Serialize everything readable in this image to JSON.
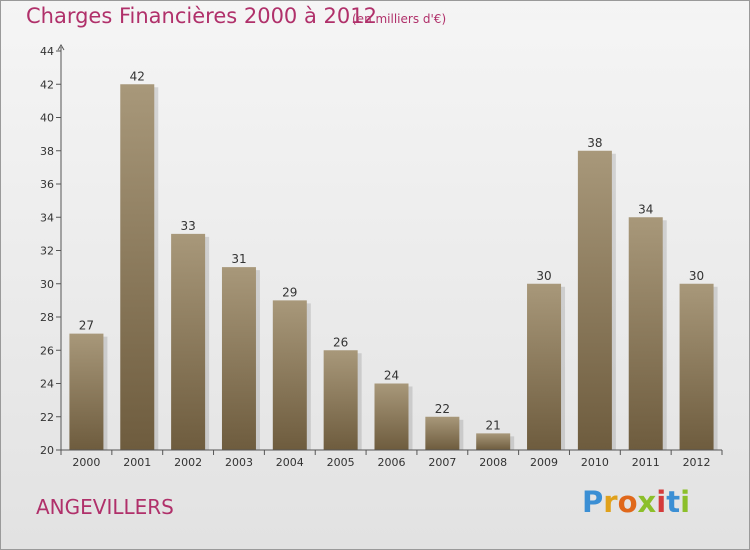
{
  "header": {
    "title": "Charges Financières 2000 à 2012",
    "subtitle": "(en milliers d'€)"
  },
  "footer": {
    "commune": "ANGEVILLERS",
    "logo_text": "Proxiti"
  },
  "colors": {
    "title": "#b0306a",
    "bar_top": "#a8987a",
    "bar_bottom": "#6e5c3e",
    "axis": "#555555"
  },
  "chart_data": {
    "type": "bar",
    "title": "Charges Financières 2000 à 2012",
    "subtitle": "(en milliers d'€)",
    "xlabel": "",
    "ylabel": "",
    "categories": [
      "2000",
      "2001",
      "2002",
      "2003",
      "2004",
      "2005",
      "2006",
      "2007",
      "2008",
      "2009",
      "2010",
      "2011",
      "2012"
    ],
    "values": [
      27,
      42,
      33,
      31,
      29,
      26,
      24,
      22,
      21,
      30,
      38,
      34,
      30
    ],
    "ylim": [
      20,
      44
    ],
    "yticks": [
      20,
      22,
      24,
      26,
      28,
      30,
      32,
      34,
      36,
      38,
      40,
      42,
      44
    ],
    "grid": false,
    "data_labels": true
  }
}
